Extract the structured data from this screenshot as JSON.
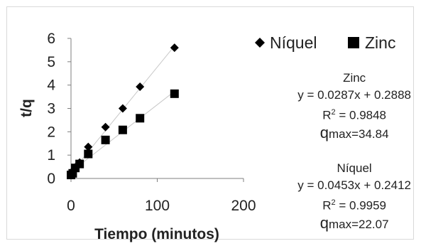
{
  "chart_data": {
    "type": "scatter",
    "xlabel": "Tiempo (minutos)",
    "ylabel": "t/q",
    "xlim": [
      0,
      200
    ],
    "ylim": [
      0,
      6
    ],
    "x_ticks": [
      "0",
      "100",
      "200"
    ],
    "y_ticks": [
      "0",
      "1",
      "2",
      "3",
      "4",
      "5",
      "6"
    ],
    "legend_position": "top-right",
    "grid": false,
    "series": [
      {
        "name": "Níquel",
        "marker": "diamond",
        "color": "#000000",
        "x": [
          0,
          2,
          5,
          10,
          20,
          40,
          60,
          80,
          120
        ],
        "y": [
          0.22,
          0.32,
          0.48,
          0.68,
          1.35,
          2.2,
          3.0,
          3.93,
          5.6
        ],
        "trendline": {
          "slope": 0.0453,
          "intercept": 0.2412,
          "x_range": [
            0,
            120
          ]
        }
      },
      {
        "name": "Zinc",
        "marker": "square",
        "color": "#000000",
        "x": [
          0,
          2,
          5,
          10,
          20,
          40,
          60,
          80,
          120
        ],
        "y": [
          0.15,
          0.22,
          0.45,
          0.62,
          1.05,
          1.65,
          2.08,
          2.58,
          3.63
        ],
        "trendline": {
          "slope": 0.0287,
          "intercept": 0.2888,
          "x_range": [
            0,
            120
          ]
        }
      }
    ]
  },
  "annotations": {
    "zinc": {
      "title": "Zinc",
      "equation": "y = 0.0287x + 0.2888",
      "r2_prefix": "R",
      "r2_exp": "2",
      "r2_value": " = 0.9848",
      "qmax_q": "q",
      "qmax_rest": "max=34.84"
    },
    "niquel": {
      "title": "Níquel",
      "equation": "y = 0.0453x + 0.2412",
      "r2_prefix": "R",
      "r2_exp": "2",
      "r2_value": " = 0.9959",
      "qmax_q": "q",
      "qmax_rest": "max=22.07"
    }
  },
  "colors": {
    "marker": "#000000",
    "trendline": "#c8c8c8",
    "axis": "#7f7f7f"
  }
}
